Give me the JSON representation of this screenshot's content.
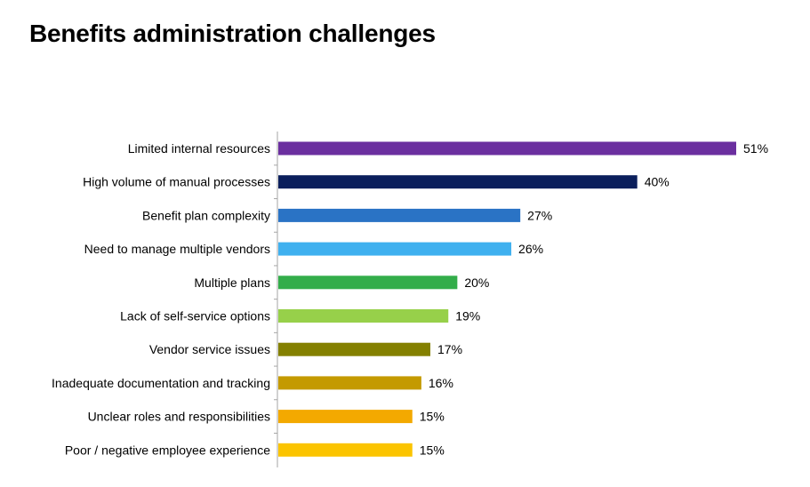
{
  "title": "Benefits administration challenges",
  "chart_data": {
    "type": "bar",
    "orientation": "horizontal",
    "title": "Benefits administration challenges",
    "xlabel": "",
    "ylabel": "",
    "xlim": [
      0,
      51
    ],
    "grid": false,
    "legend": "none",
    "value_suffix": "%",
    "categories": [
      "Limited internal resources",
      "High volume of manual processes",
      "Benefit plan complexity",
      "Need to manage multiple vendors",
      "Multiple plans",
      "Lack of self-service options",
      "Vendor service issues",
      "Inadequate documentation and tracking",
      "Unclear roles and responsibilities",
      "Poor / negative employee experience"
    ],
    "values": [
      51,
      40,
      27,
      26,
      20,
      19,
      17,
      16,
      15,
      15
    ],
    "value_labels": [
      "51%",
      "40%",
      "27%",
      "26%",
      "20%",
      "19%",
      "17%",
      "16%",
      "15%",
      "15%"
    ],
    "colors": [
      "#6B2F9F",
      "#0B1F5C",
      "#2A73C5",
      "#3FB0EF",
      "#33AD4A",
      "#97D04A",
      "#848000",
      "#C49A00",
      "#F3A900",
      "#FBC400"
    ],
    "axis_color": "#A6A6A6"
  }
}
